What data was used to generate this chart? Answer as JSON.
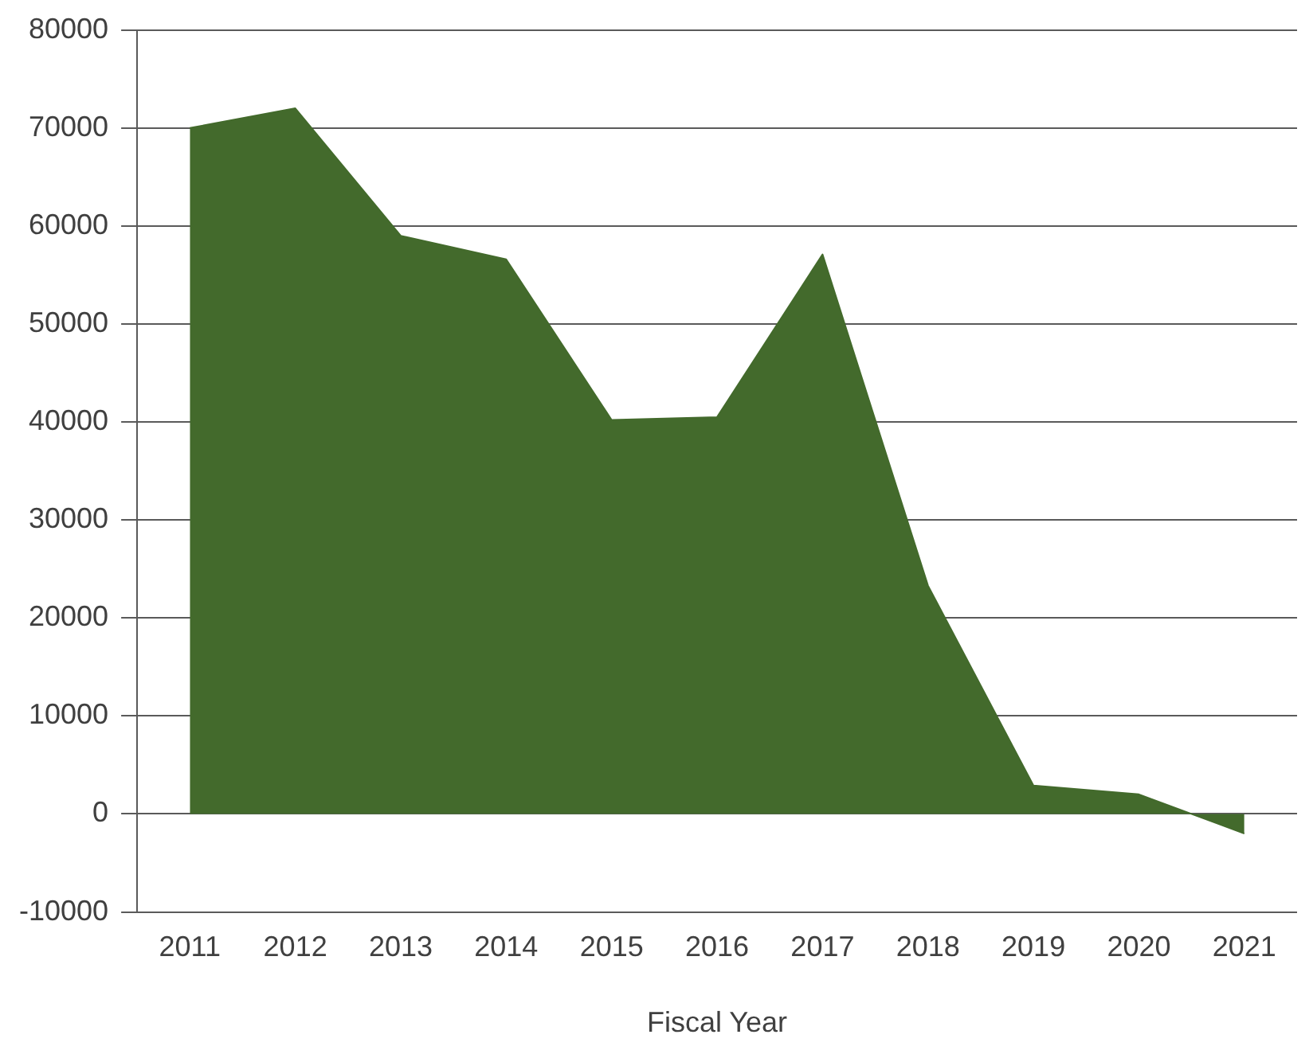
{
  "chart_data": {
    "type": "area",
    "xlabel": "Fiscal Year",
    "categories": [
      "2011",
      "2012",
      "2013",
      "2014",
      "2015",
      "2016",
      "2017",
      "2018",
      "2019",
      "2020",
      "2021"
    ],
    "series": [
      {
        "color": "#436a2c",
        "values": [
          70000,
          72000,
          59000,
          56600,
          40200,
          40500,
          57100,
          23300,
          2900,
          2000,
          -2000
        ]
      }
    ],
    "ylim": [
      -10000,
      80000
    ],
    "yticks": [
      -10000,
      0,
      10000,
      20000,
      30000,
      40000,
      50000,
      60000,
      70000,
      80000
    ],
    "grid": "y",
    "legend": false
  }
}
